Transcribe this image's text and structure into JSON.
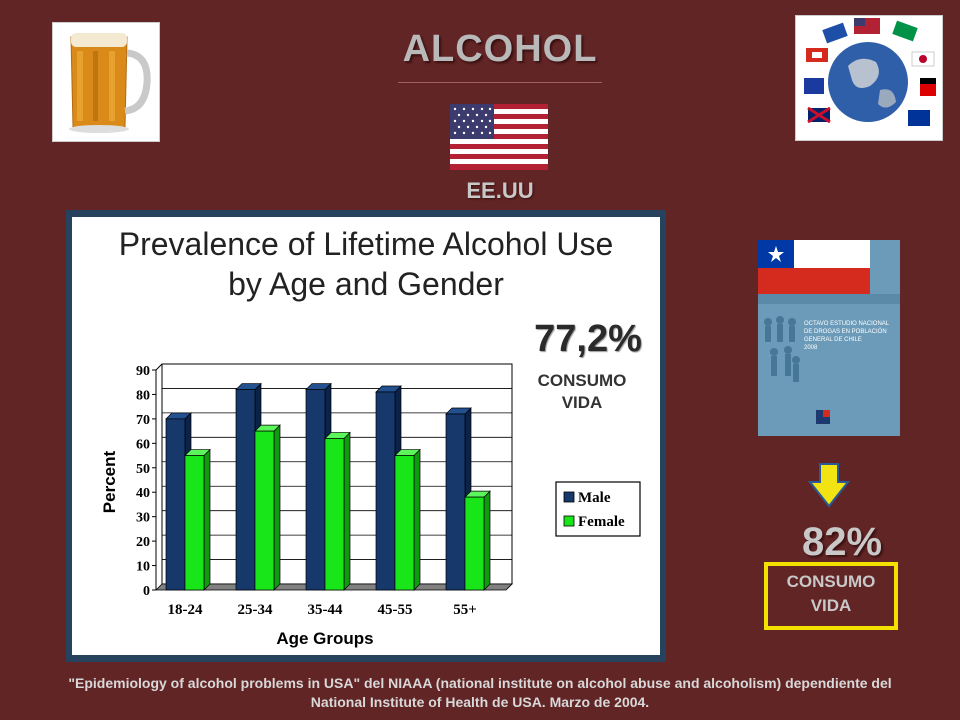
{
  "header": {
    "title": "ALCOHOL",
    "country": "EE.UU"
  },
  "chart_data": {
    "type": "bar",
    "title": "Prevalence of Lifetime Alcohol Use by Age and Gender",
    "title_line1": "Prevalence of Lifetime Alcohol Use",
    "title_line2": "by Age and Gender",
    "xlabel": "Age Groups",
    "ylabel": "Percent",
    "categories": [
      "18-24",
      "25-34",
      "35-44",
      "45-55",
      "55+"
    ],
    "yticks": [
      "0",
      "10",
      "20",
      "30",
      "40",
      "50",
      "60",
      "70",
      "80",
      "90"
    ],
    "ylim": [
      0,
      90
    ],
    "grid": true,
    "legend_position": "right",
    "series": [
      {
        "name": "Male",
        "color": "#16386b",
        "values": [
          70,
          82,
          82,
          81,
          72
        ]
      },
      {
        "name": "Female",
        "color": "#19e619",
        "values": [
          55,
          65,
          62,
          55,
          38
        ]
      }
    ]
  },
  "us_stat": {
    "percent": "77,2%",
    "label_line1": "CONSUMO",
    "label_line2": "VIDA"
  },
  "chile_stat": {
    "percent": "82%",
    "label_line1": "CONSUMO",
    "label_line2": "VIDA"
  },
  "book_cover": {
    "line1": "OCTAVO ESTUDIO NACIONAL",
    "line2": "DE DROGAS EN POBLACIÓN",
    "line3": "GENERAL DE CHILE",
    "line4": "2008"
  },
  "footer": {
    "line1": "\"Epidemiology of alcohol problems in USA\" del NIAAA (national institute on alcohol abuse and alcoholism) dependiente del",
    "line2": "National Institute of Health de USA. Marzo de 2004."
  },
  "colors": {
    "background": "#622526",
    "highlight_box": "#f5e100",
    "arrow": "#f2e313"
  },
  "icons": [
    "beer-mug-icon",
    "globe-flags-icon",
    "us-flag-icon",
    "chile-flag-icon",
    "down-arrow-icon"
  ]
}
